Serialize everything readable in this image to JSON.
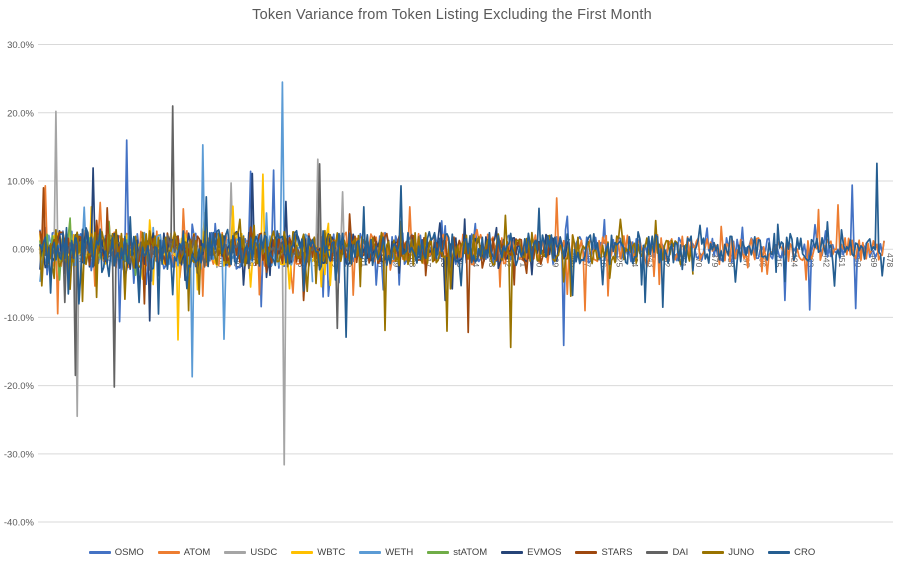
{
  "chart_data": {
    "type": "line",
    "title": "Token Variance from Token Listing Excluding the First Month",
    "xlabel": "",
    "ylabel": "",
    "legend_position": "bottom",
    "grid": true,
    "grid_color": "#d9d9d9",
    "axis_text_color": "#595959",
    "x_axis": {
      "tick_start": 1,
      "tick_step": 9,
      "tick_end": 478,
      "label_rotation_deg": 90,
      "ticks": [
        1,
        10,
        19,
        28,
        37,
        46,
        55,
        64,
        73,
        82,
        91,
        100,
        109,
        118,
        127,
        136,
        145,
        154,
        163,
        172,
        181,
        190,
        199,
        208,
        217,
        226,
        235,
        244,
        253,
        262,
        271,
        280,
        289,
        298,
        307,
        316,
        325,
        334,
        343,
        352,
        361,
        370,
        379,
        388,
        397,
        406,
        415,
        424,
        433,
        442,
        451,
        460,
        469,
        478
      ]
    },
    "y_axis": {
      "min": -40,
      "max": 30,
      "tick_step": 10,
      "format": "percent-1-decimal",
      "labels": [
        "30.0%",
        "20.0%",
        "10.0%",
        "0.0%",
        "-10.0%",
        "-20.0%",
        "-30.0%",
        "-40.0%"
      ]
    },
    "series_note": "Values are daily % variance; dense noisy lines. range = [first,last] x-index where the series has data; noise amplitude in % tapers across the range; spikes are the notable extreme points readable from the chart as [x, y%].",
    "series": [
      {
        "name": "OSMO",
        "color": "#4472C4",
        "seed": 11,
        "range": [
          1,
          478
        ],
        "noise_amplitude_start_pct": 3.4,
        "noise_amplitude_end_pct": 1.3,
        "spikes": [
          [
            50,
            16.0
          ],
          [
            120,
            11.4
          ],
          [
            133,
            11.6
          ],
          [
            297,
            -14.1
          ],
          [
            422,
            -7.5
          ],
          [
            436,
            -8.9
          ],
          [
            460,
            9.4
          ],
          [
            462,
            -8.7
          ]
        ]
      },
      {
        "name": "ATOM",
        "color": "#ED7D31",
        "seed": 22,
        "range": [
          1,
          478
        ],
        "noise_amplitude_start_pct": 3.0,
        "noise_amplitude_end_pct": 1.6,
        "spikes": [
          [
            4,
            9.3
          ],
          [
            210,
            6.2
          ],
          [
            293,
            7.5
          ],
          [
            309,
            -9.0
          ],
          [
            441,
            5.8
          ],
          [
            452,
            6.5
          ]
        ]
      },
      {
        "name": "USDC",
        "color": "#A5A5A5",
        "seed": 33,
        "range": [
          1,
          175
        ],
        "noise_amplitude_start_pct": 0.9,
        "noise_amplitude_end_pct": 0.8,
        "spikes": [
          [
            10,
            20.2
          ],
          [
            22,
            -24.5
          ],
          [
            109,
            9.7
          ],
          [
            139,
            -31.6
          ],
          [
            158,
            13.2
          ],
          [
            172,
            8.4
          ]
        ]
      },
      {
        "name": "WBTC",
        "color": "#FFC000",
        "seed": 44,
        "range": [
          1,
          168
        ],
        "noise_amplitude_start_pct": 2.6,
        "noise_amplitude_end_pct": 2.2,
        "spikes": [
          [
            30,
            6.2
          ],
          [
            79,
            -13.3
          ],
          [
            110,
            6.3
          ],
          [
            127,
            11.0
          ],
          [
            160,
            -5.5
          ]
        ]
      },
      {
        "name": "WETH",
        "color": "#5B9BD5",
        "seed": 55,
        "range": [
          1,
          155
        ],
        "noise_amplitude_start_pct": 2.6,
        "noise_amplitude_end_pct": 2.4,
        "spikes": [
          [
            87,
            -18.7
          ],
          [
            93,
            15.3
          ],
          [
            105,
            -13.2
          ],
          [
            138,
            24.5
          ]
        ]
      },
      {
        "name": "stATOM",
        "color": "#70AD47",
        "seed": 66,
        "range": [
          1,
          62
        ],
        "noise_amplitude_start_pct": 2.0,
        "noise_amplitude_end_pct": 1.8,
        "spikes": [
          [
            12,
            -4.5
          ],
          [
            40,
            4.0
          ],
          [
            55,
            -3.8
          ]
        ]
      },
      {
        "name": "EVMOS",
        "color": "#264478",
        "seed": 77,
        "range": [
          1,
          300
        ],
        "noise_amplitude_start_pct": 3.0,
        "noise_amplitude_end_pct": 1.8,
        "spikes": [
          [
            31,
            11.9
          ],
          [
            63,
            -10.5
          ],
          [
            121,
            11.1
          ],
          [
            140,
            7.0
          ],
          [
            230,
            -7.5
          ]
        ]
      },
      {
        "name": "STARS",
        "color": "#9E480E",
        "seed": 88,
        "range": [
          1,
          290
        ],
        "noise_amplitude_start_pct": 2.6,
        "noise_amplitude_end_pct": 1.8,
        "spikes": [
          [
            3,
            9.0
          ],
          [
            60,
            -8.0
          ],
          [
            150,
            -7.5
          ],
          [
            243,
            -12.2
          ]
        ]
      },
      {
        "name": "DAI",
        "color": "#636363",
        "seed": 99,
        "range": [
          1,
          175
        ],
        "noise_amplitude_start_pct": 1.0,
        "noise_amplitude_end_pct": 0.9,
        "spikes": [
          [
            15,
            -7.8
          ],
          [
            21,
            -18.5
          ],
          [
            43,
            -20.2
          ],
          [
            76,
            21.0
          ],
          [
            159,
            12.5
          ],
          [
            169,
            -11.6
          ]
        ]
      },
      {
        "name": "JUNO",
        "color": "#997300",
        "seed": 110,
        "range": [
          1,
          370
        ],
        "noise_amplitude_start_pct": 3.0,
        "noise_amplitude_end_pct": 2.0,
        "spikes": [
          [
            85,
            -9.0
          ],
          [
            196,
            -11.9
          ],
          [
            231,
            -12.0
          ],
          [
            267,
            -14.4
          ],
          [
            349,
            4.2
          ]
        ]
      },
      {
        "name": "CRO",
        "color": "#255E91",
        "seed": 121,
        "range": [
          1,
          478
        ],
        "noise_amplitude_start_pct": 3.3,
        "noise_amplitude_end_pct": 1.7,
        "spikes": [
          [
            23,
            -8.0
          ],
          [
            68,
            -9.5
          ],
          [
            174,
            -12.9
          ],
          [
            205,
            9.3
          ],
          [
            283,
            6.0
          ],
          [
            343,
            -7.8
          ],
          [
            353,
            -8.5
          ],
          [
            446,
            4.0
          ],
          [
            474,
            12.6
          ]
        ]
      }
    ]
  }
}
